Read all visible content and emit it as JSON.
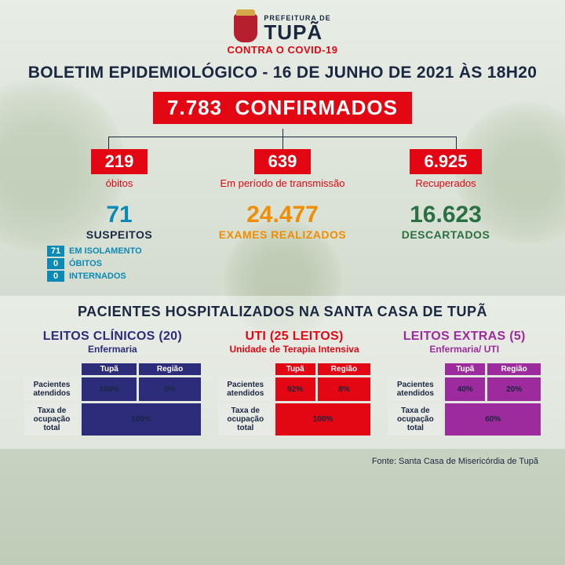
{
  "header": {
    "prefeitura": "PREFEITURA DE",
    "city": "TUPÃ",
    "contra": "CONTRA O COVID-19"
  },
  "title": "BOLETIM EPIDEMIOLÓGICO - 16 DE JUNHO DE 2021 ÀS 18H20",
  "colors": {
    "red": "#e30613",
    "navy": "#1a2740",
    "cyan": "#0b8ab5",
    "orange": "#f28c00",
    "green": "#2a7042",
    "purple": "#9d2b9d",
    "indigo": "#2c2c7a"
  },
  "confirmed": {
    "value": "7.783",
    "label": "CONFIRMADOS",
    "bg": "#e30613"
  },
  "top3": [
    {
      "value": "219",
      "label": "óbitos",
      "bg": "#e30613",
      "label_color": "#e30613"
    },
    {
      "value": "639",
      "label": "Em período de transmissão",
      "bg": "#e30613",
      "label_color": "#e30613"
    },
    {
      "value": "6.925",
      "label": "Recuperados",
      "bg": "#e30613",
      "label_color": "#e30613"
    }
  ],
  "suspects": {
    "value": "71",
    "label": "SUSPEITOS",
    "items": [
      {
        "n": "71",
        "t": "EM ISOLAMENTO"
      },
      {
        "n": "0",
        "t": "ÓBITOS"
      },
      {
        "n": "0",
        "t": "INTERNADOS"
      }
    ]
  },
  "exams": {
    "value": "24.477",
    "label": "EXAMES REALIZADOS",
    "color": "#f28c00"
  },
  "discarded": {
    "value": "16.623",
    "label": "DESCARTADOS",
    "color": "#2a7042"
  },
  "hospital": {
    "title": "PACIENTES HOSPITALIZADOS NA SANTA CASA DE TUPÃ",
    "cols": [
      {
        "title": "LEITOS CLÍNICOS (20)",
        "subtitle": "Enfermaria",
        "color": "#2c2c7a",
        "headers": [
          "Tupã",
          "Região"
        ],
        "row1": {
          "lbl": "Pacientes atendidos",
          "a": "100%",
          "b": "0%"
        },
        "row2": {
          "lbl": "Taxa de ocupação total",
          "v": "100%"
        }
      },
      {
        "title": "UTI (25 LEITOS)",
        "subtitle": "Unidade de Terapia Intensiva",
        "color": "#e30613",
        "headers": [
          "Tupã",
          "Região"
        ],
        "row1": {
          "lbl": "Pacientes atendidos",
          "a": "92%",
          "b": "8%"
        },
        "row2": {
          "lbl": "Taxa de ocupação total",
          "v": "100%"
        }
      },
      {
        "title": "LEITOS EXTRAS (5)",
        "subtitle": "Enfermaria/ UTI",
        "color": "#9d2b9d",
        "headers": [
          "Tupã",
          "Região"
        ],
        "row1": {
          "lbl": "Pacientes atendidos",
          "a": "40%",
          "b": "20%"
        },
        "row2": {
          "lbl": "Taxa de ocupação total",
          "v": "60%"
        }
      }
    ]
  },
  "source": "Fonte: Santa Casa de Misericórdia de Tupã"
}
